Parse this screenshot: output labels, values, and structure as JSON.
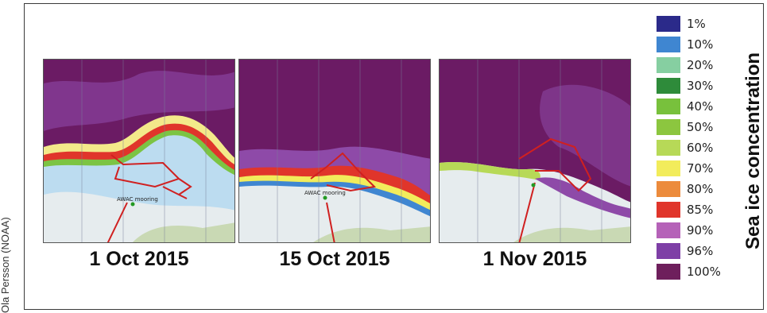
{
  "credit": "Ola Persson (NOAA)",
  "panels": [
    {
      "date": "1 Oct 2015",
      "station_label": "AWAC mooring"
    },
    {
      "date": "15 Oct 2015",
      "station_label": "AWAC mooring"
    },
    {
      "date": "1 Nov 2015",
      "station_label": ""
    }
  ],
  "legend": {
    "title": "Sea ice concentration",
    "items": [
      {
        "label": "1%",
        "color": "#2b2a8a"
      },
      {
        "label": "10%",
        "color": "#3f86d1"
      },
      {
        "label": "20%",
        "color": "#86cfa1"
      },
      {
        "label": "30%",
        "color": "#2e8b3a"
      },
      {
        "label": "40%",
        "color": "#78c13c"
      },
      {
        "label": "50%",
        "color": "#8cc63f"
      },
      {
        "label": "60%",
        "color": "#b7d957"
      },
      {
        "label": "70%",
        "color": "#f2ec5b"
      },
      {
        "label": "80%",
        "color": "#ec8b3c"
      },
      {
        "label": "85%",
        "color": "#e0352b"
      },
      {
        "label": "90%",
        "color": "#b562b8"
      },
      {
        "label": "96%",
        "color": "#7e3fa6"
      },
      {
        "label": "100%",
        "color": "#6e1f5c"
      }
    ]
  }
}
